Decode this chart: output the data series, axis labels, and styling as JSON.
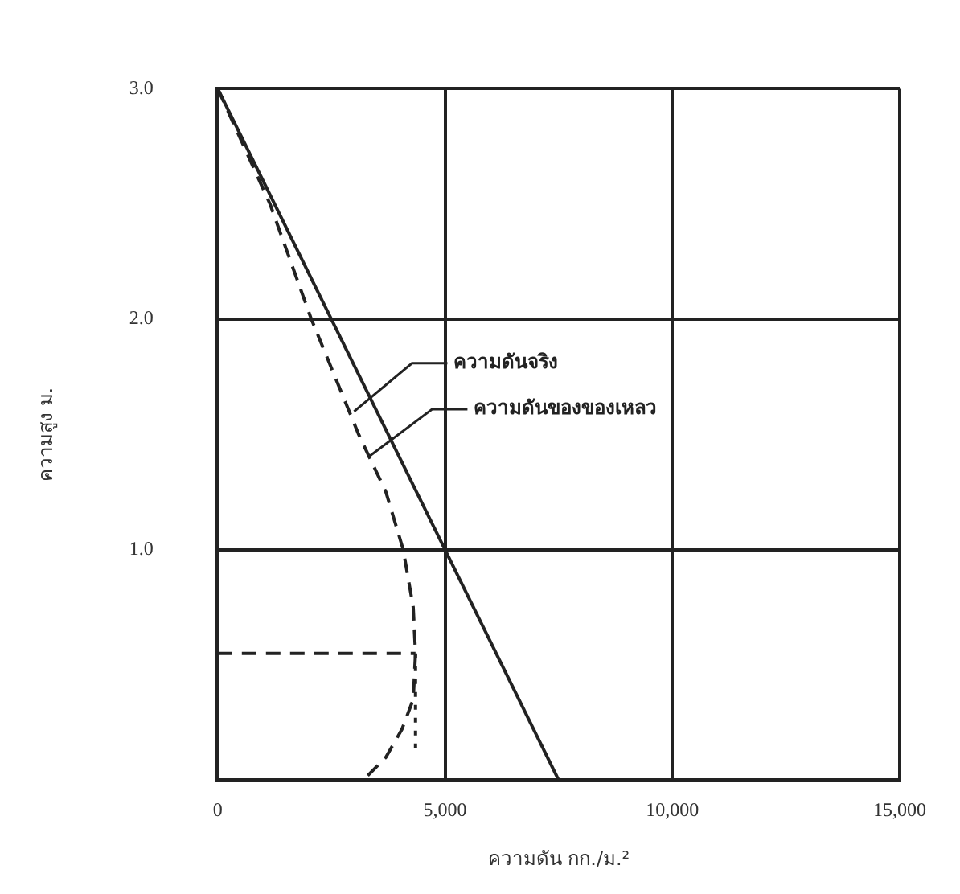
{
  "chart_data": {
    "type": "line",
    "xlabel": "ความดัน กก./ม.²",
    "ylabel": "ความสูง ม.",
    "xlim": [
      0,
      15000
    ],
    "ylim": [
      0,
      3
    ],
    "xticks": [
      0,
      {
        "value": 5000,
        "label": "5,000"
      },
      {
        "value": 10000,
        "label": "10,000"
      },
      {
        "value": 15000,
        "label": "15,000"
      }
    ],
    "yticks": [
      {
        "value": 0,
        "label": null
      },
      {
        "value": 1,
        "label": "1.0"
      },
      {
        "value": 2,
        "label": "2.0"
      },
      {
        "value": 3,
        "label": "3.0"
      }
    ],
    "grid": true,
    "marker": "none",
    "series": [
      {
        "color": "#222222",
        "line_style": "solid",
        "x": [
          0,
          7500
        ],
        "values": [
          3,
          0
        ]
      },
      {
        "color": "#222222",
        "line_style": "dashed",
        "x": [
          0,
          1150,
          2060,
          3100,
          3700,
          4080,
          4300,
          4350,
          4300,
          4050,
          3700,
          3200
        ],
        "values": [
          3,
          2.5,
          2,
          1.5,
          1.25,
          1,
          0.75,
          0.55,
          0.35,
          0.22,
          0.1,
          0
        ]
      },
      {
        "color": "#222222",
        "line_style": "dashed",
        "x": [
          0,
          4350
        ],
        "values": [
          0.55,
          0.55
        ]
      },
      {
        "color": "#222222",
        "line_style": "dotted",
        "x": [
          4350,
          4350
        ],
        "values": [
          0.55,
          0.12
        ]
      }
    ],
    "annotations": [
      {
        "text": "ความดันจริง",
        "x": 3000,
        "y": 1.6
      },
      {
        "text": "ความดันของของเหลว",
        "x": 3300,
        "y": 1.4
      }
    ]
  }
}
